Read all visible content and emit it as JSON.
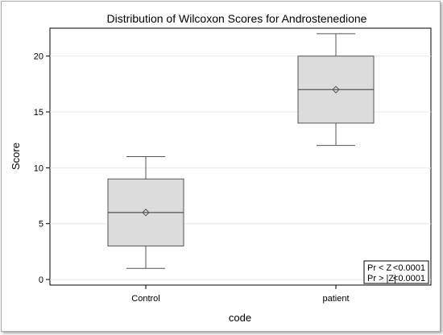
{
  "chart_data": {
    "type": "box",
    "title": "Distribution of Wilcoxon Scores for Androstenedione",
    "xlabel": "code",
    "ylabel": "Score",
    "ylim": [
      -0.5,
      22.5
    ],
    "yticks": [
      0,
      5,
      10,
      15,
      20
    ],
    "categories": [
      "Control",
      "patient"
    ],
    "boxes": [
      {
        "category": "Control",
        "min": 1,
        "q1": 3,
        "median": 6,
        "q3": 9,
        "max": 11,
        "mean": 6
      },
      {
        "category": "patient",
        "min": 12,
        "q1": 14,
        "median": 17,
        "q3": 20,
        "max": 22,
        "mean": 17
      }
    ],
    "grid": true,
    "colors": {
      "box_fill": "#dcdcdc",
      "box_stroke": "#555555",
      "grid": "#e8e8e8"
    },
    "stats_table": [
      {
        "label": "Pr < Z",
        "value": "<0.0001"
      },
      {
        "label": "Pr > |Z|",
        "value": "<0.0001"
      }
    ]
  }
}
